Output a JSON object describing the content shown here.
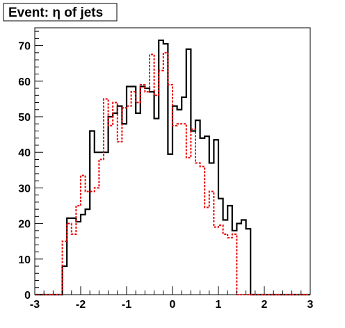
{
  "chart_data": {
    "type": "histogram",
    "title": "Event: η of jets",
    "xlabel": "",
    "ylabel": "",
    "xlim": [
      -3,
      3
    ],
    "ylim": [
      0,
      75
    ],
    "x_ticks": [
      -3,
      -2,
      -1,
      0,
      1,
      2,
      3
    ],
    "x_tick_labels": [
      "-3",
      "-2",
      "-1",
      "0",
      "1",
      "2",
      "3"
    ],
    "y_ticks": [
      0,
      10,
      20,
      30,
      40,
      50,
      60,
      70
    ],
    "y_tick_labels": [
      "0",
      "10",
      "20",
      "30",
      "40",
      "50",
      "60",
      "70"
    ],
    "bin_edges": [
      -3.0,
      -2.9,
      -2.8,
      -2.7,
      -2.6,
      -2.5,
      -2.4,
      -2.3,
      -2.2,
      -2.1,
      -2.0,
      -1.9,
      -1.8,
      -1.7,
      -1.6,
      -1.5,
      -1.4,
      -1.3,
      -1.2,
      -1.1,
      -1.0,
      -0.9,
      -0.8,
      -0.7,
      -0.6,
      -0.5,
      -0.4,
      -0.3,
      -0.2,
      -0.1,
      0.0,
      0.1,
      0.2,
      0.3,
      0.4,
      0.5,
      0.6,
      0.7,
      0.8,
      0.9,
      1.0,
      1.1,
      1.2,
      1.3,
      1.4,
      1.5,
      1.6,
      1.7,
      1.8,
      1.9,
      2.0,
      2.1,
      2.2,
      2.3,
      2.4,
      2.5,
      2.6,
      2.7,
      2.8,
      2.9,
      3.0
    ],
    "series": [
      {
        "style": "solid",
        "color": "#000000",
        "values": [
          0,
          0,
          0,
          0,
          0,
          0,
          8,
          21.5,
          21.5,
          20.5,
          22.5,
          24,
          46,
          40,
          40,
          40,
          50,
          51,
          53,
          48,
          58.5,
          58.5,
          51,
          58.5,
          58,
          57,
          49.5,
          71.5,
          70.5,
          39.5,
          53,
          52,
          55.5,
          69,
          46,
          49,
          44,
          44.5,
          37,
          43.5,
          27,
          21,
          25,
          18,
          20,
          21,
          18.5,
          0,
          0,
          0,
          0,
          0,
          0,
          0,
          0,
          0,
          0,
          0,
          0,
          0
        ]
      },
      {
        "style": "dashed",
        "color": "#ee0000",
        "values": [
          0,
          0,
          0,
          0,
          0,
          0,
          15,
          20,
          17,
          25,
          33.5,
          29,
          29,
          30,
          38,
          55,
          47.5,
          54,
          43,
          52.5,
          53,
          57,
          54,
          59,
          57,
          67.5,
          56,
          63,
          68,
          59,
          47.5,
          48,
          48,
          38.5,
          46.5,
          37,
          36,
          24.5,
          29,
          19,
          19.5,
          17,
          16,
          17,
          0,
          0,
          0,
          0,
          0,
          0,
          0,
          0,
          0,
          0,
          0,
          0,
          0,
          0,
          0,
          0
        ]
      }
    ],
    "legend": "none",
    "grid": false
  }
}
